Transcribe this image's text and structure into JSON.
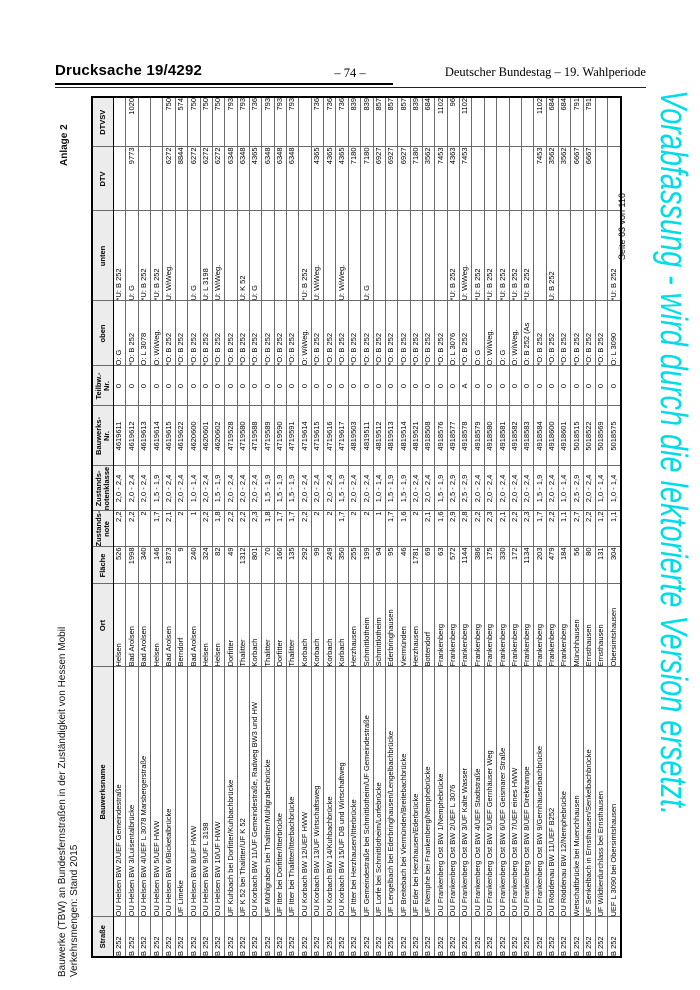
{
  "header": {
    "drucksache": "Drucksache 19/4292",
    "page_number": "– 74 –",
    "right": "Deutscher Bundestag – 19. Wahlperiode"
  },
  "side": {
    "anlage": "Anlage 2",
    "caption_line1": "Bauwerke (TBW) an Bundesfernstraßen in der Zuständigkeit von Hessen Mobil",
    "caption_line2": "Verkehrsmengen: Stand 2015",
    "page_footer": "Seite 63 von 116",
    "watermark": "Vorabfassung - wird durch die lektorierte Version ersetzt.",
    "watermark_color": "#00dde6"
  },
  "table": {
    "columns": [
      {
        "key": "strasse",
        "lines": [
          "Straße"
        ]
      },
      {
        "key": "bauwerksname",
        "lines": [
          "Bauwerksname"
        ]
      },
      {
        "key": "ort",
        "lines": [
          "Ort"
        ]
      },
      {
        "key": "flaeche",
        "lines": [
          "Fläche"
        ]
      },
      {
        "key": "zustandsnote",
        "lines": [
          "Zustands-",
          "note"
        ]
      },
      {
        "key": "zustandsnotenklasse",
        "lines": [
          "Zustands-",
          "notenklasse"
        ]
      },
      {
        "key": "bauwerks_nr",
        "lines": [
          "Bauwerks-",
          "Nr."
        ]
      },
      {
        "key": "teilbw_nr",
        "lines": [
          "Teilbw.-",
          "Nr."
        ]
      },
      {
        "key": "oben",
        "lines": [
          "oben"
        ]
      },
      {
        "key": "unten",
        "lines": [
          "unten"
        ]
      },
      {
        "key": "dtv",
        "lines": [
          "DTV"
        ]
      },
      {
        "key": "dtvsv",
        "lines": [
          "DTVSV"
        ]
      }
    ],
    "rows": [
      [
        "B 252",
        "OU Helsen BW 2/UEF Gemeindestraße",
        "Helsen",
        "526",
        "2,2",
        "2,0 - 2,4",
        "4619611",
        "0",
        "O: G",
        "*U: B 252",
        "",
        ""
      ],
      [
        "B 252",
        "OU Helsen BW 3/Luisentalbrücke",
        "Bad Arolsen",
        "1998",
        "2,2",
        "2,0 - 2,4",
        "4619612",
        "0",
        "*O: B 252",
        "U: G",
        "9773",
        "1020"
      ],
      [
        "B 252",
        "OU Helsen BW 4/UEF L 3078 Marsbergerstraße",
        "Bad Arolsen",
        "340",
        "2",
        "2,0 - 2,4",
        "4619613",
        "0",
        "O: L 3078",
        "*U: B 252",
        "",
        ""
      ],
      [
        "B 252",
        "OU Helsen BW 5/UEF HWW",
        "Helsen",
        "146",
        "1,7",
        "1,5 - 1,9",
        "4619614",
        "0",
        "O: WiWeg.",
        "*U: B 252",
        "",
        ""
      ],
      [
        "B 252",
        "OU Helsen BW 6/Bicketalbrücke",
        "Bad Arolsen",
        "1873",
        "2,1",
        "2,0 - 2,4",
        "4619615",
        "0",
        "*O: B 252",
        "U: WiWeg.",
        "6272",
        "750"
      ],
      [
        "B 252",
        "UF Limeke",
        "Berndorf",
        "9",
        "2",
        "2,0 - 2,4",
        "4619622",
        "0",
        "*O: B 252",
        "",
        "8844",
        "574"
      ],
      [
        "B 252",
        "OU Helsen BW 8/UF HWW",
        "Bad Arolsen",
        "240",
        "1",
        "1,0 - 1,4",
        "4620600",
        "0",
        "*O: B 252",
        "U: G",
        "6272",
        "750"
      ],
      [
        "B 252",
        "OU Helsen BW 9/UF L 3198",
        "Helsen",
        "324",
        "2,2",
        "2,0 - 2,4",
        "4620601",
        "0",
        "*O: B 252",
        "U: L 3198",
        "6272",
        "750"
      ],
      [
        "B 252",
        "OU Helsen BW 10/UF HWW",
        "Helsen",
        "82",
        "1,8",
        "1,5 - 1,9",
        "4620602",
        "0",
        "*O: B 252",
        "U: WiWeg.",
        "6272",
        "750"
      ],
      [
        "B 252",
        "UF Kuhbach bei Dorfitter/Kuhbachbrücke",
        "Dorfitter",
        "49",
        "2,2",
        "2,0 - 2,4",
        "4719528",
        "0",
        "*O: B 252",
        "",
        "6348",
        "793"
      ],
      [
        "B 252",
        "UF K 52 bei Thalitter/UF K 52",
        "Thalitter",
        "1312",
        "2,2",
        "2,0 - 2,4",
        "4719580",
        "0",
        "*O: B 252",
        "U: K 52",
        "6348",
        "793"
      ],
      [
        "B 252",
        "OU Korbach BW 11/UF Gemeindestraße, Radweg BW3 und HW",
        "Korbach",
        "801",
        "2,3",
        "2,0 - 2,4",
        "4719588",
        "0",
        "*O: B 252",
        "U: G",
        "4365",
        "736"
      ],
      [
        "B 252",
        "UF Mühlgraben bei Thalitter/Mühlgrabenbrücke",
        "Thalitter",
        "70",
        "1,8",
        "1,5 - 1,9",
        "4719589",
        "0",
        "*O: B 252",
        "",
        "6348",
        "793"
      ],
      [
        "B 252",
        "UF Itter bei Dorfitter/Itterbrücke",
        "Dorfitter",
        "160",
        "1,7",
        "1,5 - 1,9",
        "4719590",
        "0",
        "*O: B 252",
        "",
        "6348",
        "793"
      ],
      [
        "B 252",
        "UF Itter bei Thalitter/Itterbachbrücke",
        "Thalitter",
        "135",
        "1,7",
        "1,5 - 1,9",
        "4719591",
        "0",
        "*O: B 252",
        "",
        "6348",
        "793"
      ],
      [
        "B 252",
        "OU Korbach BW 12/UEF HWW",
        "Korbach",
        "292",
        "2,2",
        "2,0 - 2,4",
        "4719614",
        "0",
        "O: WiWeg.",
        "*U: B 252",
        "",
        ""
      ],
      [
        "B 252",
        "OU Korbach BW 13/UF Wirtschaftsweg",
        "Korbach",
        "99",
        "2",
        "2,0 - 2,4",
        "4719615",
        "0",
        "*O: B 252",
        "U: WiWeg.",
        "4365",
        "736"
      ],
      [
        "B 252",
        "OU Korbach BW 14/Kuhbachbrücke",
        "Korbach",
        "249",
        "2",
        "2,0 - 2,4",
        "4719616",
        "0",
        "*O: B 252",
        "",
        "4365",
        "736"
      ],
      [
        "B 252",
        "OU Korbach BW 15/UF DB und Wirtschaftweg",
        "Korbach",
        "350",
        "1,7",
        "1,5 - 1,9",
        "4719617",
        "0",
        "*O: B 252",
        "U: WiWeg.",
        "4365",
        "736"
      ],
      [
        "B 252",
        "UF Itter bei Herzhausen/Itterbrücke",
        "Herzhausen",
        "255",
        "2",
        "2,0 - 2,4",
        "4819503",
        "0",
        "*O: B 252",
        "",
        "7180",
        "839"
      ],
      [
        "B 252",
        "UF Gemeindestraße bei Schmittlotheim/UF Gemeindestraße",
        "Schmittlotheim",
        "199",
        "2",
        "2,0 - 2,4",
        "4819511",
        "0",
        "*O: B 252",
        "U: G",
        "7180",
        "839"
      ],
      [
        "B 252",
        "UF Lorfe bei Schmittlotheim/Lorfebrücke",
        "Schmittlotheim",
        "94",
        "1",
        "1,0 - 1,4",
        "4819512",
        "0",
        "*O: B 252",
        "",
        "6927",
        "857"
      ],
      [
        "B 252",
        "UF Lengelbach bei Ederbringhausen/Lengelbachbrücke",
        "Ederbringhausen",
        "95",
        "1,7",
        "1,5 - 1,9",
        "4819513",
        "0",
        "*O: B 252",
        "",
        "6927",
        "857"
      ],
      [
        "B 252",
        "UF Breitebach bei Viermünden/Breitebachbrücke",
        "Viermünden",
        "46",
        "1,6",
        "1,5 - 1,9",
        "4819514",
        "0",
        "*O: B 252",
        "",
        "6927",
        "857"
      ],
      [
        "B 252",
        "UF Eder bei Herzhausen/Ederbrücke",
        "Herzhausen",
        "1781",
        "2",
        "2,0 - 2,4",
        "4819521",
        "0",
        "*O: B 252",
        "",
        "7180",
        "839"
      ],
      [
        "B 252",
        "UF Nemphe bei Frankenberg/Nemphebrücke",
        "Bottendorf",
        "69",
        "2,1",
        "2,0 - 2,4",
        "4918508",
        "0",
        "*O: B 252",
        "",
        "3562",
        "684"
      ],
      [
        "B 252",
        "OU Frankenberg Ost BW 1/Nemphebrücke",
        "Frankenberg",
        "63",
        "1,6",
        "1,5 - 1,9",
        "4918576",
        "0",
        "*O: B 252",
        "",
        "7453",
        "1102"
      ],
      [
        "B 252",
        "OU Frankenberg Ost BW 2/UEF L 3076",
        "Frankenberg",
        "572",
        "2,9",
        "2,5 - 2,9",
        "4918577",
        "0",
        "O: L 3076",
        "*U: B 252",
        "4363",
        "96"
      ],
      [
        "B 252",
        "OU Frankenberg Ost BW 3/UF Kalte Wasser",
        "Frankenberg",
        "1144",
        "2,8",
        "2,5 - 2,9",
        "4918578",
        "A",
        "*O: B 252",
        "U: WiWeg.",
        "7453",
        "1102"
      ],
      [
        "B 252",
        "OU Frankenberg Ost BW 4/UEF Stadtstraße",
        "Frankenberg",
        "386",
        "2,2",
        "2,0 - 2,4",
        "4918579",
        "0",
        "O: G",
        "*U: B 252",
        "",
        ""
      ],
      [
        "B 252",
        "OU Frankenberg Ost BW 5/UEF Gernhäuser Weg",
        "Frankenberg",
        "175",
        "2,3",
        "2,0 - 2,4",
        "4918580",
        "0",
        "O: WiWeg.",
        "*U: B 252",
        "",
        ""
      ],
      [
        "B 252",
        "OU Frankenberg Ost BW 6/UEF Geismarer Straße",
        "Frankenberg",
        "330",
        "2,1",
        "2,0 - 2,4",
        "4918581",
        "0",
        "O: G",
        "*U: B 252",
        "",
        ""
      ],
      [
        "B 252",
        "OU Frankenberg Ost BW 7/UEF eines HWW",
        "Frankenberg",
        "172",
        "2,2",
        "2,0 - 2,4",
        "4918582",
        "0",
        "O: WiWeg.",
        "*U: B 252",
        "",
        ""
      ],
      [
        "B 252",
        "OU Frankenberg Ost BW 8/UEF Direktrampe",
        "Frankenberg",
        "1134",
        "2,3",
        "2,0 - 2,4",
        "4918583",
        "0",
        "O: B 252 (As",
        "*U: B 252",
        "",
        ""
      ],
      [
        "B 252",
        "OU Frankenberg Ost BW 9/Gernhäuserbachbrücke",
        "Frankenberg",
        "203",
        "1,7",
        "1,5 - 1,9",
        "4918584",
        "0",
        "*O: B 252",
        "",
        "7453",
        "1102"
      ],
      [
        "B 252",
        "OU Röddenau BW 11/UEF B252",
        "Frankenberg",
        "479",
        "2,2",
        "2,0 - 2,4",
        "4918600",
        "0",
        "*O: B 252",
        "U: B 252",
        "3562",
        "684"
      ],
      [
        "B 252",
        "OU Röddenau BW 12/Nemphebrücke",
        "Frankenberg",
        "184",
        "1,1",
        "1,0 - 1,4",
        "4918601",
        "0",
        "*O: B 252",
        "",
        "3562",
        "684"
      ],
      [
        "B 252",
        "Wetschaftbrücke bei Muenchhausen",
        "Münchhausen",
        "56",
        "2,7",
        "2,5 - 2,9",
        "5018515",
        "0",
        "*O: B 252",
        "",
        "6667",
        "791"
      ],
      [
        "B 252",
        "UF Senkelbach in Ernsthausen/Senkelbachbrücke",
        "Ernsthausen",
        "80",
        "2,2",
        "2,0 - 2,4",
        "5018522",
        "0",
        "*O: B 252",
        "",
        "6667",
        "791"
      ],
      [
        "B 252",
        "UF Wildtierdurchlass bei Ernsthausen",
        "Ernsthausen",
        "131",
        "1,2",
        "1,0 - 1,4",
        "5018569",
        "0",
        "*O: B 252",
        "",
        "",
        ""
      ],
      [
        "B 252",
        "UEF L 3090 bei Obersimtshausen",
        "Obersimtshausen",
        "304",
        "1,1",
        "1,0 - 1,4",
        "5018575",
        "0",
        "O: L 3090",
        "*U: B 252",
        "",
        ""
      ]
    ]
  }
}
